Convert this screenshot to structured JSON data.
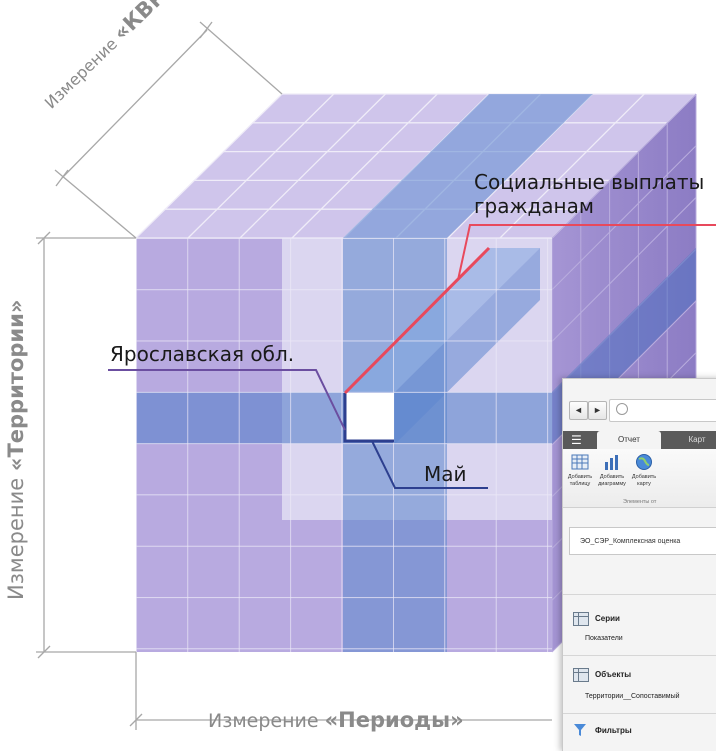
{
  "labels": {
    "dim_kvr_prefix": "Измерение ",
    "dim_kvr_name": "«КВР»",
    "dim_territories_prefix": "Измерение ",
    "dim_territories_name": "«Территории»",
    "dim_periods_prefix": "Измерение ",
    "dim_periods_name": "«Периоды»",
    "social_payments_line1": "Социальные выплаты",
    "social_payments_line2": "гражданам",
    "yaroslavl": "Ярославская обл.",
    "may": "Май"
  },
  "colors": {
    "cube_base": "#b4a6dc",
    "cube_grid": "#f2f0fa",
    "slice_blue": "#5b86cc",
    "highlight_line": "#e8495c",
    "callout_line": "#6b4ea0",
    "dimension_text": "#8a8a8a",
    "app_tabbar": "#5a5a5a"
  },
  "app": {
    "nav_back": "◄",
    "nav_forward": "►",
    "tab_report": "Отчет",
    "tab_map": "Карт",
    "toolbar": {
      "add_table": "Добавить таблицу",
      "add_chart": "Добавить диаграмму",
      "add_map": "Добавить карту",
      "group_label": "Элементы от"
    },
    "datasource": "ЭО_СЭР_Комплексная оценка",
    "series_title": "Серии",
    "series_item": "Показатели",
    "objects_title": "Объекты",
    "objects_item": "Территории__Сопоставимый",
    "filters_title": "Фильтры"
  }
}
